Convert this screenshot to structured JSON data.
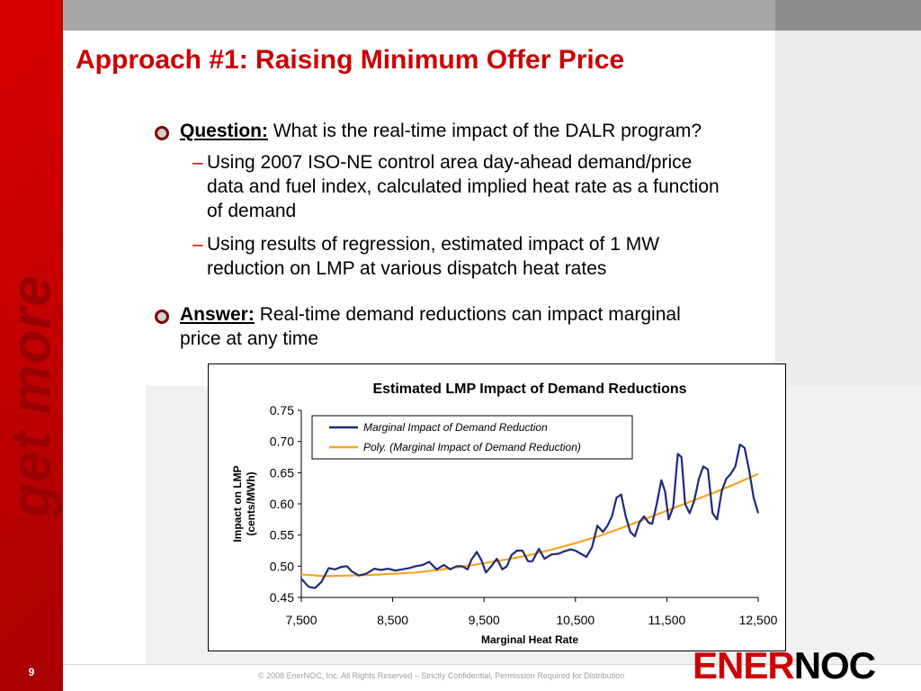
{
  "slide": {
    "title": "Approach #1: Raising Minimum Offer Price",
    "side_text": "get more",
    "number": "9",
    "footer": "© 2008 EnerNOC, Inc. All Rights Reserved – Strictly Confidential, Permission Required for Distribution",
    "logo": {
      "part1": "ENER",
      "part2": "NOC"
    }
  },
  "bullets": [
    {
      "keyword": "Question:",
      "text": " What is the real-time impact of the DALR program?",
      "subs": [
        {
          "dash": "–",
          "lines": [
            "Using 2007 ISO-NE control area day-ahead demand/price",
            "data and fuel index, calculated implied heat rate as a function",
            "of demand"
          ]
        },
        {
          "dash": "–",
          "lines": [
            "Using results of regression, estimated impact of 1 MW",
            "reduction on LMP at various dispatch heat rates"
          ]
        }
      ]
    },
    {
      "keyword": "Answer:",
      "text": " Real-time demand reductions can impact marginal",
      "text2": "price at any time"
    }
  ],
  "colors": {
    "brand_red": "#cc0000",
    "series_navy": "#1f2a7a",
    "series_orange": "#f5a623"
  },
  "chart_data": {
    "type": "line",
    "title": "Estimated LMP Impact of Demand Reductions",
    "xlabel": "Marginal Heat Rate",
    "ylabel_lines": [
      "Impact on LMP",
      "(cents/MWh)"
    ],
    "xlim": [
      7500,
      12500
    ],
    "ylim": [
      0.45,
      0.75
    ],
    "x_ticks": [
      7500,
      8500,
      9500,
      10500,
      11500,
      12500
    ],
    "x_tick_labels": [
      "7,500",
      "8,500",
      "9,500",
      "10,500",
      "11,500",
      "12,500"
    ],
    "y_ticks": [
      0.45,
      0.5,
      0.55,
      0.6,
      0.65,
      0.7,
      0.75
    ],
    "y_tick_labels": [
      "0.45",
      "0.50",
      "0.55",
      "0.60",
      "0.65",
      "0.70",
      "0.75"
    ],
    "grid": false,
    "legend_position": "top-right",
    "series": [
      {
        "name": "Marginal Impact of Demand Reduction",
        "color": "#1f2a7a",
        "x": [
          7500,
          7580,
          7650,
          7720,
          7800,
          7870,
          7940,
          8000,
          8050,
          8130,
          8210,
          8300,
          8370,
          8450,
          8530,
          8600,
          8680,
          8750,
          8830,
          8900,
          8980,
          9060,
          9130,
          9200,
          9260,
          9320,
          9360,
          9420,
          9470,
          9520,
          9580,
          9640,
          9700,
          9750,
          9800,
          9860,
          9920,
          9980,
          10030,
          10100,
          10160,
          10240,
          10310,
          10380,
          10450,
          10500,
          10560,
          10620,
          10680,
          10740,
          10800,
          10850,
          10900,
          10950,
          11000,
          11050,
          11100,
          11150,
          11200,
          11250,
          11300,
          11340,
          11390,
          11440,
          11480,
          11520,
          11570,
          11620,
          11660,
          11700,
          11750,
          11800,
          11850,
          11900,
          11950,
          12000,
          12050,
          12100,
          12150,
          12200,
          12250,
          12300,
          12350,
          12400,
          12450,
          12500
        ],
        "values": [
          0.48,
          0.467,
          0.465,
          0.475,
          0.497,
          0.495,
          0.499,
          0.5,
          0.492,
          0.485,
          0.488,
          0.496,
          0.494,
          0.496,
          0.493,
          0.495,
          0.497,
          0.5,
          0.502,
          0.507,
          0.495,
          0.502,
          0.495,
          0.5,
          0.5,
          0.495,
          0.51,
          0.523,
          0.51,
          0.49,
          0.5,
          0.512,
          0.495,
          0.5,
          0.518,
          0.525,
          0.525,
          0.508,
          0.508,
          0.528,
          0.512,
          0.519,
          0.52,
          0.524,
          0.527,
          0.525,
          0.52,
          0.515,
          0.53,
          0.565,
          0.555,
          0.565,
          0.58,
          0.61,
          0.615,
          0.58,
          0.555,
          0.548,
          0.57,
          0.58,
          0.57,
          0.568,
          0.6,
          0.638,
          0.62,
          0.575,
          0.595,
          0.68,
          0.675,
          0.6,
          0.585,
          0.605,
          0.64,
          0.66,
          0.655,
          0.585,
          0.575,
          0.62,
          0.64,
          0.648,
          0.66,
          0.695,
          0.69,
          0.655,
          0.61,
          0.585
        ]
      },
      {
        "name": "Poly. (Marginal Impact of Demand Reduction)",
        "color": "#f5a623",
        "x": [
          7500,
          7750,
          8000,
          8250,
          8500,
          8750,
          9000,
          9250,
          9500,
          9750,
          10000,
          10250,
          10500,
          10750,
          11000,
          11250,
          11500,
          11750,
          12000,
          12250,
          12500
        ],
        "values": [
          0.487,
          0.484,
          0.485,
          0.486,
          0.488,
          0.49,
          0.494,
          0.499,
          0.505,
          0.511,
          0.518,
          0.527,
          0.537,
          0.548,
          0.561,
          0.575,
          0.589,
          0.603,
          0.617,
          0.632,
          0.648
        ]
      }
    ]
  }
}
